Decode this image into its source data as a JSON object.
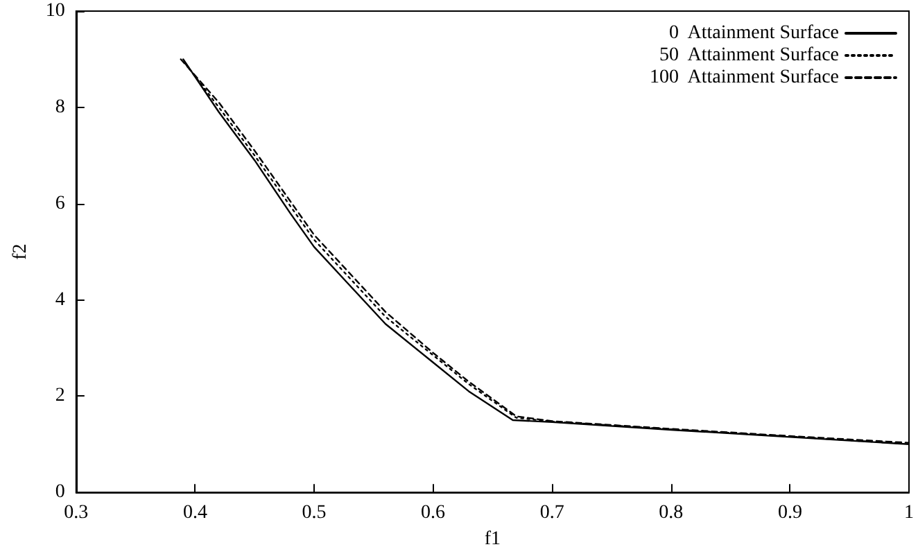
{
  "chart_data": {
    "type": "line",
    "xlabel": "f1",
    "ylabel": "f2",
    "xlim": [
      0.3,
      1
    ],
    "xticks": [
      0.3,
      0.4,
      0.5,
      0.6,
      0.7,
      0.8,
      0.9,
      1
    ],
    "ylim": [
      0,
      10
    ],
    "yticks": [
      0,
      2,
      4,
      6,
      8,
      10
    ],
    "grid": false,
    "legend": "top right",
    "marker": "none",
    "series": [
      {
        "name": "0  Attainment Surface",
        "color": "#000000",
        "line_style": "solid",
        "x": [
          0.39,
          0.42,
          0.45,
          0.48,
          0.5,
          0.53,
          0.56,
          0.6,
          0.63,
          0.667,
          0.7,
          0.8,
          0.9,
          1.0
        ],
        "values": [
          9.0,
          7.9,
          6.9,
          5.8,
          5.1,
          4.3,
          3.5,
          2.7,
          2.1,
          1.5,
          1.46,
          1.3,
          1.15,
          1.0
        ]
      },
      {
        "name": "50  Attainment Surface",
        "color": "#000000",
        "line_style": "dotted",
        "x": [
          0.392,
          0.42,
          0.45,
          0.48,
          0.5,
          0.53,
          0.56,
          0.6,
          0.63,
          0.67,
          0.7,
          0.8,
          0.9,
          0.99
        ],
        "values": [
          8.9,
          8.0,
          7.0,
          5.95,
          5.25,
          4.45,
          3.65,
          2.85,
          2.25,
          1.55,
          1.47,
          1.31,
          1.16,
          1.02
        ]
      },
      {
        "name": "100  Attainment Surface",
        "color": "#000000",
        "line_style": "dashed",
        "x": [
          0.388,
          0.42,
          0.45,
          0.48,
          0.5,
          0.53,
          0.56,
          0.6,
          0.63,
          0.67,
          0.7,
          0.8,
          0.9,
          1.0
        ],
        "values": [
          9.0,
          8.1,
          7.1,
          6.05,
          5.35,
          4.55,
          3.75,
          2.9,
          2.3,
          1.58,
          1.48,
          1.32,
          1.17,
          1.03
        ]
      }
    ]
  }
}
